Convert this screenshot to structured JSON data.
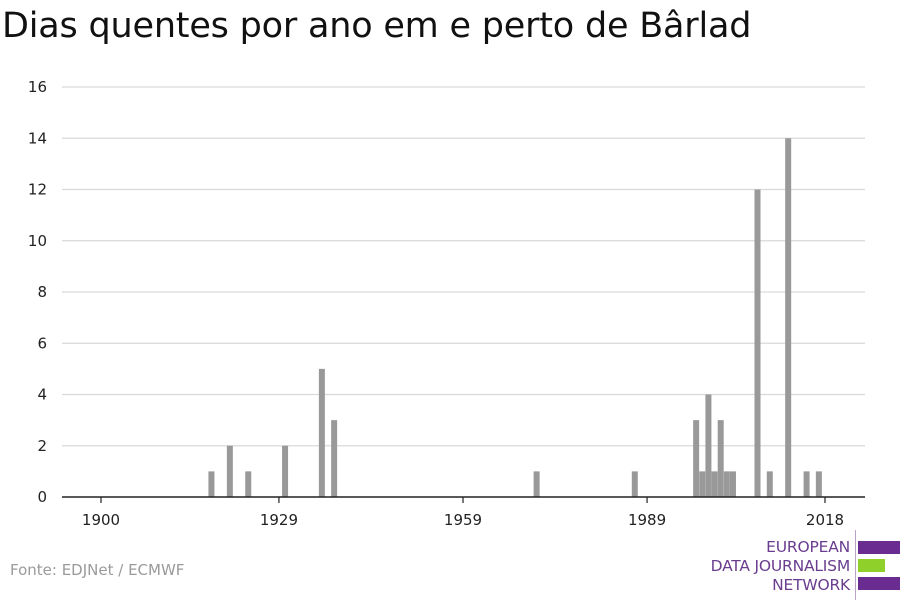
{
  "title": "Dias quentes por ano em e perto de Bârlad",
  "source": "Fonte: EDJNet / ECMWF",
  "logo": {
    "lines": [
      "EUROPEAN",
      "DATA JOURNALISM",
      "NETWORK"
    ],
    "colors": [
      "#6a2c91",
      "#8fd12a",
      "#6a2c91"
    ]
  },
  "colors": {
    "bar": "#999999",
    "grid": "#d9d9d9",
    "axis": "#222222"
  },
  "chart_data": {
    "type": "bar",
    "title": "Dias quentes por ano em e perto de Bârlad",
    "xlabel": "",
    "ylabel": "",
    "xlim": [
      1900,
      2018
    ],
    "ylim": [
      0,
      16
    ],
    "x_ticks": [
      1900,
      1929,
      1959,
      1989,
      2018
    ],
    "y_ticks": [
      0,
      2,
      4,
      6,
      8,
      10,
      12,
      14,
      16
    ],
    "grid": true,
    "x": [
      1918,
      1921,
      1924,
      1930,
      1936,
      1938,
      1971,
      1987,
      1997,
      1998,
      1999,
      2000,
      2001,
      2002,
      2003,
      2007,
      2009,
      2012,
      2015,
      2017
    ],
    "values": [
      1,
      2,
      1,
      2,
      5,
      3,
      1,
      1,
      3,
      1,
      4,
      1,
      3,
      1,
      1,
      12,
      1,
      14,
      1,
      1
    ]
  }
}
